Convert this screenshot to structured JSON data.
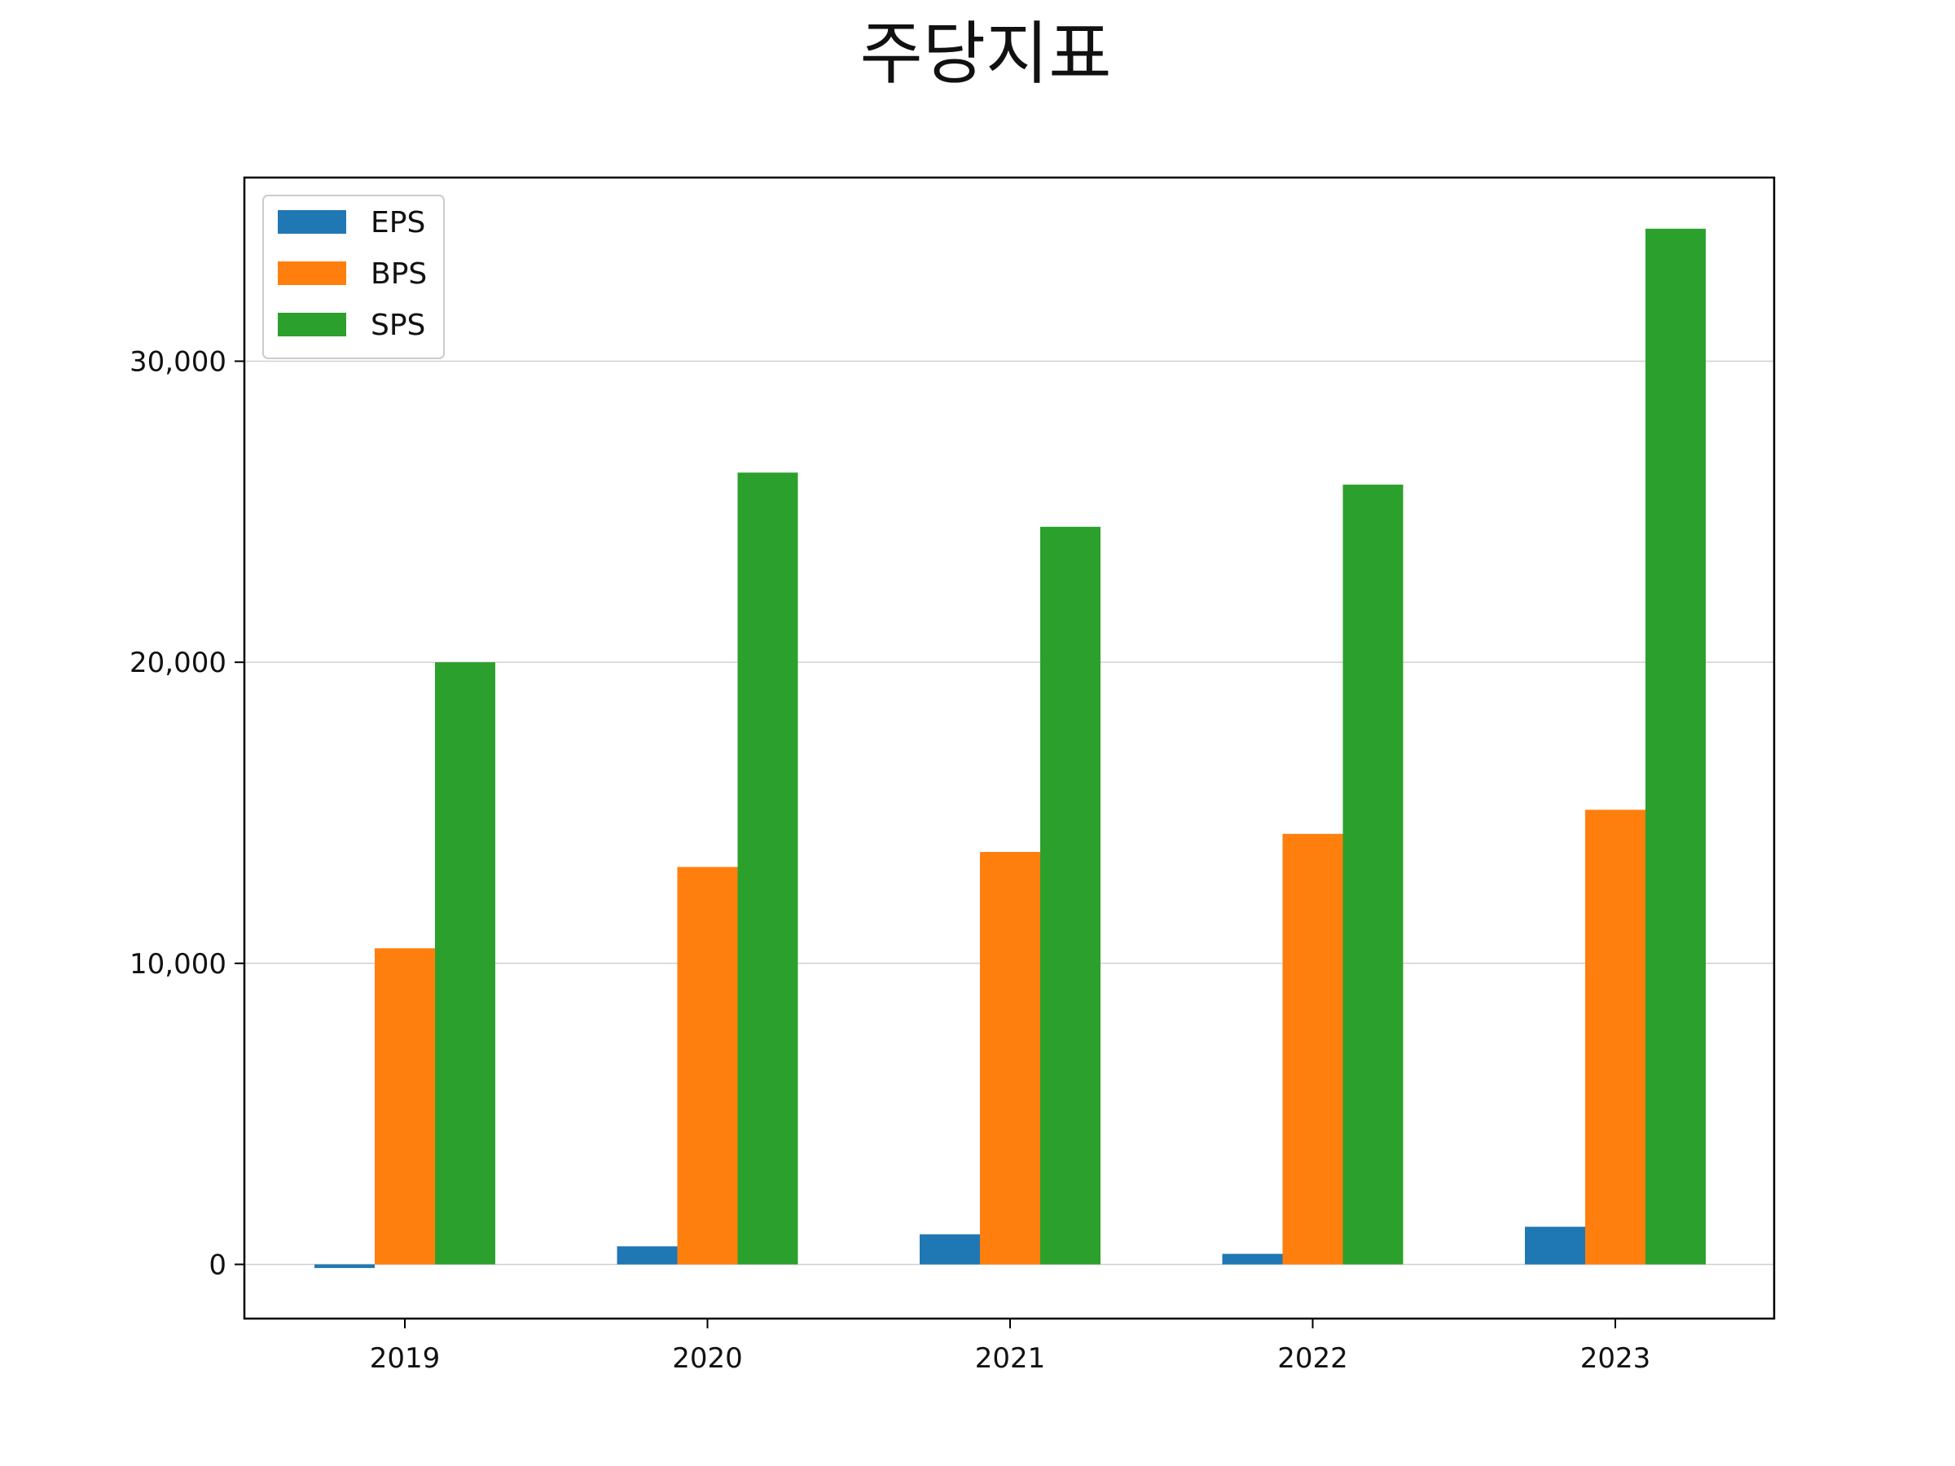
{
  "chart_data": {
    "type": "bar",
    "title": "주당지표",
    "xlabel": "",
    "ylabel": "",
    "categories": [
      "2019",
      "2020",
      "2021",
      "2022",
      "2023"
    ],
    "series": [
      {
        "name": "EPS",
        "values": [
          -120,
          600,
          1000,
          350,
          1250
        ],
        "color": "#1f77b4"
      },
      {
        "name": "BPS",
        "values": [
          10500,
          13200,
          13700,
          14300,
          15100
        ],
        "color": "#ff7f0e"
      },
      {
        "name": "SPS",
        "values": [
          20000,
          26300,
          24500,
          25900,
          34400
        ],
        "color": "#2ca02c"
      }
    ],
    "ylim": [
      -1800,
      36100
    ],
    "yticks": [
      0,
      10000,
      20000,
      30000
    ],
    "ytick_labels": [
      "0",
      "10,000",
      "20,000",
      "30,000"
    ],
    "grid": "horizontal",
    "legend_position": "top-left"
  }
}
